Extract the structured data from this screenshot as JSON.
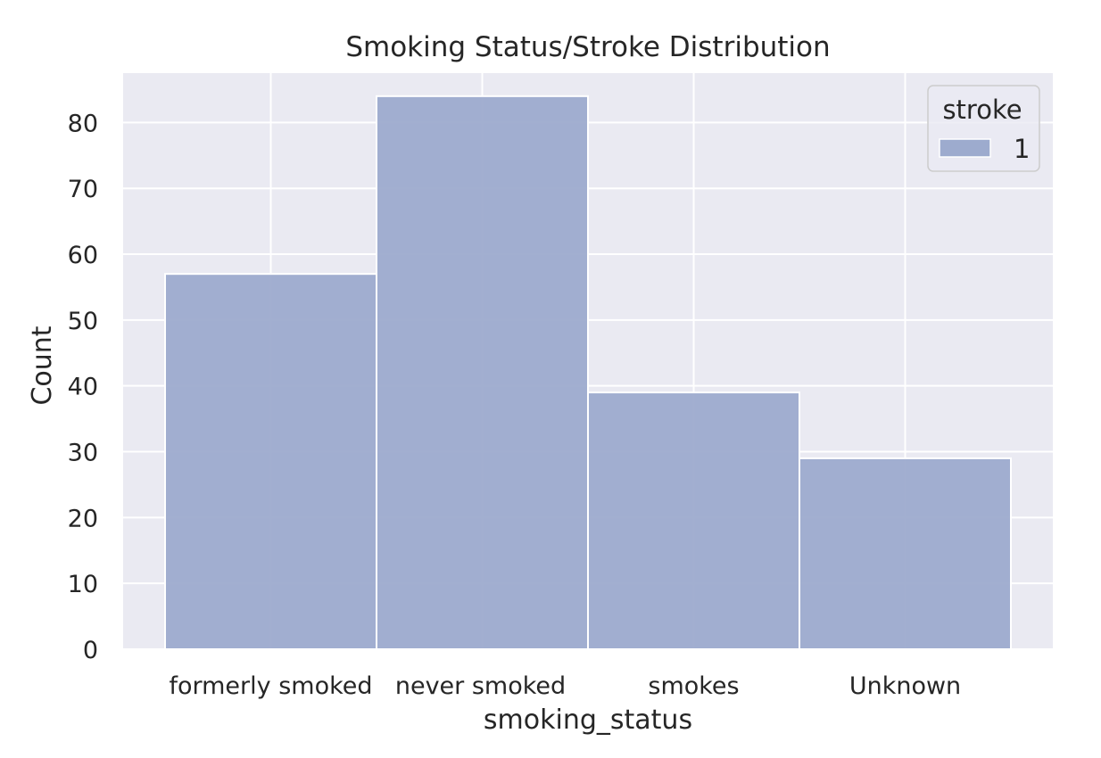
{
  "chart_data": {
    "type": "bar",
    "title": "Smoking Status/Stroke Distribution",
    "xlabel": "smoking_status",
    "ylabel": "Count",
    "categories": [
      "formerly smoked",
      "never smoked",
      "smokes",
      "Unknown"
    ],
    "series": [
      {
        "name": "1",
        "values": [
          57,
          84,
          39,
          29
        ]
      }
    ],
    "ylim": [
      0,
      87.5
    ],
    "yticks": [
      0,
      10,
      20,
      30,
      40,
      50,
      60,
      70,
      80
    ],
    "grid": true,
    "legend": {
      "title": "stroke",
      "placement": "top-right"
    },
    "colors": {
      "plot_background": "#EAEAF2",
      "grid": "#FFFFFF",
      "bar_fill": "#9DABCE",
      "bar_edge": "#FFFFFF",
      "text": "#262626"
    }
  }
}
